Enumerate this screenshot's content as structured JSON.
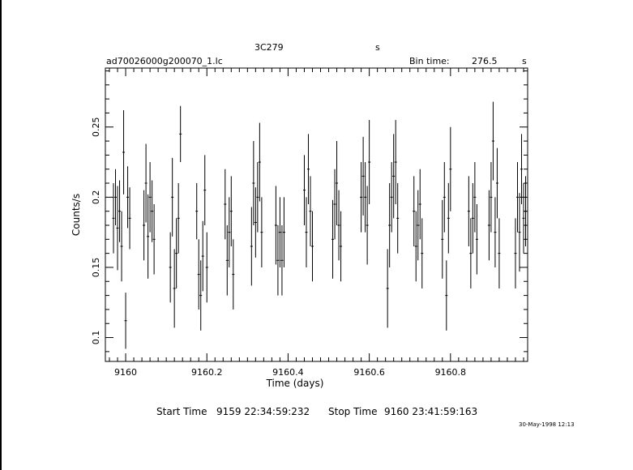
{
  "header": {
    "object": "3C279",
    "unit_s": "s",
    "filename": "ad70026000g200070_1.lc",
    "bin_label": "Bin time:",
    "bin_value": "276.5",
    "bin_unit": "s"
  },
  "footer": {
    "start_label": "Start Time",
    "start_value": "9159 22:34:59:232",
    "stop_label": "Stop Time",
    "stop_value": "9160 23:41:59:163",
    "date_stamp": "30-May-1998 12:13"
  },
  "chart_data": {
    "type": "scatter",
    "xlabel": "Time (days)",
    "ylabel": "Counts/s",
    "xlim": [
      9159.95,
      9160.99
    ],
    "ylim": [
      0.083,
      0.292
    ],
    "x_ticks": [
      9160,
      9160.2,
      9160.4,
      9160.6,
      9160.8
    ],
    "x_tick_labels": [
      "9160",
      "9160.2",
      "9160.4",
      "9160.6",
      "9160.8"
    ],
    "y_ticks": [
      0.1,
      0.15,
      0.2,
      0.25
    ],
    "y_tick_labels": [
      "0.1",
      "0.15",
      "0.2",
      "0.25"
    ],
    "series": [
      {
        "error_bars": true,
        "points": [
          {
            "x": 9159.97,
            "y": 0.185,
            "err": 0.025
          },
          {
            "x": 9159.975,
            "y": 0.2,
            "err": 0.02
          },
          {
            "x": 9159.98,
            "y": 0.178,
            "err": 0.03
          },
          {
            "x": 9159.985,
            "y": 0.19,
            "err": 0.022
          },
          {
            "x": 9159.99,
            "y": 0.165,
            "err": 0.025
          },
          {
            "x": 9159.995,
            "y": 0.232,
            "err": 0.03
          },
          {
            "x": 9160.0,
            "y": 0.112,
            "err": 0.02
          },
          {
            "x": 9160.005,
            "y": 0.2,
            "err": 0.022
          },
          {
            "x": 9160.01,
            "y": 0.185,
            "err": 0.022
          },
          {
            "x": 9160.045,
            "y": 0.18,
            "err": 0.025
          },
          {
            "x": 9160.05,
            "y": 0.21,
            "err": 0.028
          },
          {
            "x": 9160.055,
            "y": 0.172,
            "err": 0.03
          },
          {
            "x": 9160.06,
            "y": 0.2,
            "err": 0.025
          },
          {
            "x": 9160.065,
            "y": 0.19,
            "err": 0.022
          },
          {
            "x": 9160.07,
            "y": 0.17,
            "err": 0.025
          },
          {
            "x": 9160.11,
            "y": 0.15,
            "err": 0.025
          },
          {
            "x": 9160.115,
            "y": 0.2,
            "err": 0.028
          },
          {
            "x": 9160.12,
            "y": 0.135,
            "err": 0.028
          },
          {
            "x": 9160.125,
            "y": 0.16,
            "err": 0.025
          },
          {
            "x": 9160.13,
            "y": 0.185,
            "err": 0.025
          },
          {
            "x": 9160.135,
            "y": 0.245,
            "err": 0.02
          },
          {
            "x": 9160.175,
            "y": 0.19,
            "err": 0.02
          },
          {
            "x": 9160.18,
            "y": 0.145,
            "err": 0.025
          },
          {
            "x": 9160.185,
            "y": 0.13,
            "err": 0.025
          },
          {
            "x": 9160.19,
            "y": 0.158,
            "err": 0.025
          },
          {
            "x": 9160.195,
            "y": 0.205,
            "err": 0.025
          },
          {
            "x": 9160.2,
            "y": 0.15,
            "err": 0.025
          },
          {
            "x": 9160.245,
            "y": 0.195,
            "err": 0.025
          },
          {
            "x": 9160.25,
            "y": 0.155,
            "err": 0.025
          },
          {
            "x": 9160.255,
            "y": 0.175,
            "err": 0.025
          },
          {
            "x": 9160.26,
            "y": 0.19,
            "err": 0.025
          },
          {
            "x": 9160.265,
            "y": 0.145,
            "err": 0.025
          },
          {
            "x": 9160.31,
            "y": 0.165,
            "err": 0.028
          },
          {
            "x": 9160.315,
            "y": 0.21,
            "err": 0.03
          },
          {
            "x": 9160.32,
            "y": 0.182,
            "err": 0.025
          },
          {
            "x": 9160.325,
            "y": 0.2,
            "err": 0.025
          },
          {
            "x": 9160.33,
            "y": 0.225,
            "err": 0.028
          },
          {
            "x": 9160.335,
            "y": 0.175,
            "err": 0.025
          },
          {
            "x": 9160.37,
            "y": 0.18,
            "err": 0.028
          },
          {
            "x": 9160.375,
            "y": 0.155,
            "err": 0.025
          },
          {
            "x": 9160.38,
            "y": 0.175,
            "err": 0.025
          },
          {
            "x": 9160.385,
            "y": 0.155,
            "err": 0.025
          },
          {
            "x": 9160.39,
            "y": 0.175,
            "err": 0.025
          },
          {
            "x": 9160.44,
            "y": 0.205,
            "err": 0.025
          },
          {
            "x": 9160.445,
            "y": 0.175,
            "err": 0.025
          },
          {
            "x": 9160.45,
            "y": 0.22,
            "err": 0.025
          },
          {
            "x": 9160.455,
            "y": 0.19,
            "err": 0.025
          },
          {
            "x": 9160.46,
            "y": 0.165,
            "err": 0.025
          },
          {
            "x": 9160.51,
            "y": 0.17,
            "err": 0.028
          },
          {
            "x": 9160.515,
            "y": 0.195,
            "err": 0.025
          },
          {
            "x": 9160.52,
            "y": 0.21,
            "err": 0.03
          },
          {
            "x": 9160.525,
            "y": 0.18,
            "err": 0.025
          },
          {
            "x": 9160.53,
            "y": 0.165,
            "err": 0.025
          },
          {
            "x": 9160.58,
            "y": 0.2,
            "err": 0.025
          },
          {
            "x": 9160.585,
            "y": 0.215,
            "err": 0.028
          },
          {
            "x": 9160.59,
            "y": 0.2,
            "err": 0.025
          },
          {
            "x": 9160.595,
            "y": 0.18,
            "err": 0.028
          },
          {
            "x": 9160.6,
            "y": 0.225,
            "err": 0.03
          },
          {
            "x": 9160.645,
            "y": 0.135,
            "err": 0.028
          },
          {
            "x": 9160.65,
            "y": 0.18,
            "err": 0.03
          },
          {
            "x": 9160.655,
            "y": 0.2,
            "err": 0.025
          },
          {
            "x": 9160.66,
            "y": 0.215,
            "err": 0.03
          },
          {
            "x": 9160.665,
            "y": 0.225,
            "err": 0.03
          },
          {
            "x": 9160.67,
            "y": 0.185,
            "err": 0.025
          },
          {
            "x": 9160.71,
            "y": 0.19,
            "err": 0.025
          },
          {
            "x": 9160.715,
            "y": 0.165,
            "err": 0.025
          },
          {
            "x": 9160.72,
            "y": 0.18,
            "err": 0.025
          },
          {
            "x": 9160.725,
            "y": 0.195,
            "err": 0.025
          },
          {
            "x": 9160.73,
            "y": 0.16,
            "err": 0.025
          },
          {
            "x": 9160.78,
            "y": 0.17,
            "err": 0.028
          },
          {
            "x": 9160.785,
            "y": 0.2,
            "err": 0.025
          },
          {
            "x": 9160.79,
            "y": 0.13,
            "err": 0.025
          },
          {
            "x": 9160.795,
            "y": 0.185,
            "err": 0.025
          },
          {
            "x": 9160.8,
            "y": 0.22,
            "err": 0.03
          },
          {
            "x": 9160.845,
            "y": 0.19,
            "err": 0.025
          },
          {
            "x": 9160.85,
            "y": 0.16,
            "err": 0.025
          },
          {
            "x": 9160.855,
            "y": 0.185,
            "err": 0.025
          },
          {
            "x": 9160.86,
            "y": 0.2,
            "err": 0.025
          },
          {
            "x": 9160.865,
            "y": 0.17,
            "err": 0.025
          },
          {
            "x": 9160.895,
            "y": 0.18,
            "err": 0.025
          },
          {
            "x": 9160.9,
            "y": 0.2,
            "err": 0.025
          },
          {
            "x": 9160.905,
            "y": 0.24,
            "err": 0.028
          },
          {
            "x": 9160.91,
            "y": 0.175,
            "err": 0.025
          },
          {
            "x": 9160.915,
            "y": 0.21,
            "err": 0.025
          },
          {
            "x": 9160.92,
            "y": 0.16,
            "err": 0.025
          },
          {
            "x": 9160.96,
            "y": 0.16,
            "err": 0.025
          },
          {
            "x": 9160.965,
            "y": 0.2,
            "err": 0.025
          },
          {
            "x": 9160.97,
            "y": 0.175,
            "err": 0.028
          },
          {
            "x": 9160.975,
            "y": 0.22,
            "err": 0.025
          },
          {
            "x": 9160.98,
            "y": 0.185,
            "err": 0.025
          },
          {
            "x": 9160.985,
            "y": 0.19,
            "err": 0.025
          }
        ]
      }
    ]
  }
}
